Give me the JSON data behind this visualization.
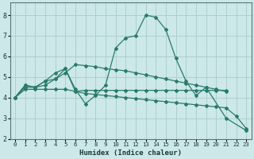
{
  "bg_color": "#cce8e8",
  "grid_color": "#aacccc",
  "line_color": "#2a7a6e",
  "xlabel": "Humidex (Indice chaleur)",
  "xlim": [
    -0.5,
    23.5
  ],
  "ylim": [
    2.0,
    8.6
  ],
  "yticks": [
    2,
    3,
    4,
    5,
    6,
    7,
    8
  ],
  "xtick_labels": [
    "0",
    "1",
    "2",
    "3",
    "4",
    "5",
    "6",
    "7",
    "8",
    "9",
    "10",
    "11",
    "12",
    "13",
    "14",
    "15",
    "16",
    "17",
    "18",
    "19",
    "20",
    "21",
    "22",
    "23"
  ],
  "series0_x": [
    0,
    1,
    2,
    3,
    4,
    5,
    6,
    7,
    8,
    9,
    10,
    11,
    12,
    13,
    14,
    15,
    16,
    17,
    18,
    19,
    21,
    23
  ],
  "series0_y": [
    4.0,
    4.6,
    4.5,
    4.8,
    4.9,
    5.4,
    4.4,
    3.7,
    4.1,
    4.6,
    6.4,
    6.9,
    7.0,
    8.0,
    7.9,
    7.3,
    5.9,
    4.8,
    4.1,
    4.5,
    3.0,
    2.4
  ],
  "series1_x": [
    0,
    1,
    2,
    3,
    4,
    5,
    6,
    7,
    8,
    9,
    10,
    11,
    12,
    13,
    14,
    15,
    16,
    17,
    18,
    19,
    20,
    21
  ],
  "series1_y": [
    4.0,
    4.6,
    4.5,
    4.8,
    5.2,
    5.4,
    4.3,
    4.35,
    4.35,
    4.35,
    4.35,
    4.35,
    4.35,
    4.35,
    4.35,
    4.35,
    4.35,
    4.35,
    4.35,
    4.35,
    4.35,
    4.35
  ],
  "series2_x": [
    0,
    1,
    2,
    3,
    4,
    5,
    6,
    7,
    8,
    9,
    10,
    11,
    12,
    13,
    14,
    15,
    16,
    17,
    18,
    19,
    20,
    21
  ],
  "series2_y": [
    4.0,
    4.5,
    4.5,
    4.6,
    4.9,
    5.2,
    5.6,
    5.55,
    5.5,
    5.4,
    5.35,
    5.3,
    5.2,
    5.1,
    5.0,
    4.9,
    4.8,
    4.7,
    4.6,
    4.5,
    4.4,
    4.3
  ],
  "series3_x": [
    0,
    1,
    2,
    3,
    4,
    5,
    6,
    7,
    8,
    9,
    10,
    11,
    12,
    13,
    14,
    15,
    16,
    17,
    18,
    19,
    20,
    21,
    22,
    23
  ],
  "series3_y": [
    4.0,
    4.4,
    4.4,
    4.4,
    4.4,
    4.4,
    4.3,
    4.2,
    4.15,
    4.1,
    4.05,
    4.0,
    3.95,
    3.9,
    3.85,
    3.8,
    3.75,
    3.7,
    3.65,
    3.6,
    3.55,
    3.5,
    3.1,
    2.5
  ]
}
